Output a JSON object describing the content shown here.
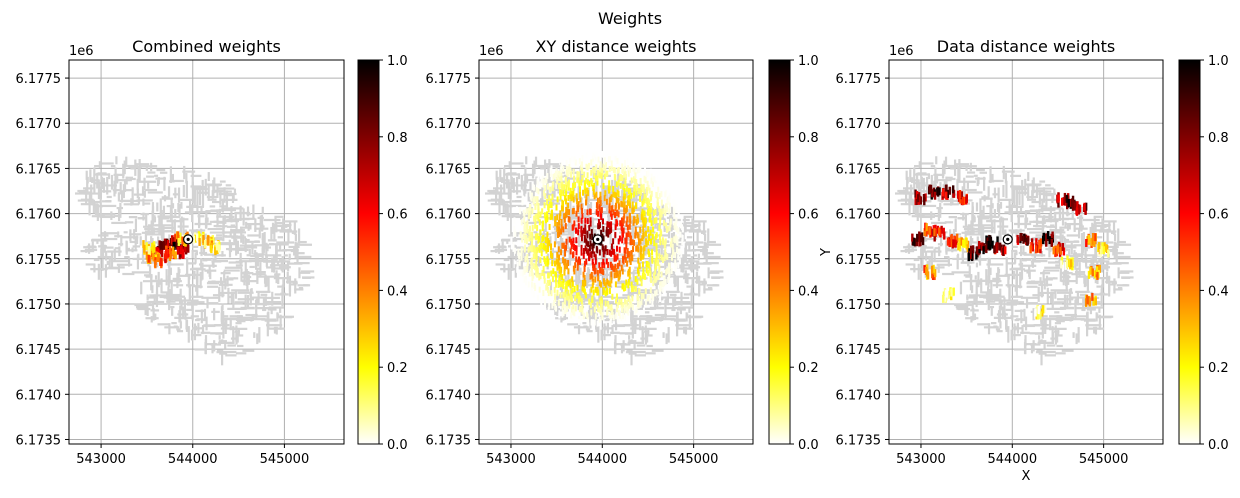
{
  "figure": {
    "title": "Weights",
    "colormap": [
      "#ffffff",
      "#ffff00",
      "#ff8000",
      "#ff0000",
      "#800000",
      "#000000"
    ],
    "grid_color": "#b0b0b0",
    "footprint_color": "#d3d3d3",
    "marker": {
      "x": 543950,
      "y": 6175715
    }
  },
  "chart_data": [
    {
      "type": "heatmap",
      "title": "Combined weights",
      "xlabel": "",
      "ylabel": "",
      "x_ticks": [
        543000,
        544000,
        545000
      ],
      "x_tick_labels": [
        "543000",
        "544000",
        "545000"
      ],
      "y_ticks": [
        6173500,
        6174000,
        6174500,
        6175000,
        6175500,
        6176000,
        6176500,
        6177000,
        6177500
      ],
      "y_tick_labels": [
        "6.1735",
        "6.1740",
        "6.1745",
        "6.1750",
        "6.1755",
        "6.1760",
        "6.1765",
        "6.1770",
        "6.1775"
      ],
      "y_offset_label": "1e6",
      "xlim": [
        542650,
        545650
      ],
      "ylim": [
        6173450,
        6177700
      ],
      "grid": true,
      "colorbar": {
        "range": [
          0,
          1
        ],
        "ticks": [
          "0.0",
          "0.2",
          "0.4",
          "0.6",
          "0.8",
          "1.0"
        ]
      },
      "weighted_points": [
        {
          "x": 543620,
          "y": 6175600,
          "w": 0.7
        },
        {
          "x": 543700,
          "y": 6175650,
          "w": 0.85
        },
        {
          "x": 543780,
          "y": 6175700,
          "w": 0.6
        },
        {
          "x": 543850,
          "y": 6175640,
          "w": 0.9
        },
        {
          "x": 543900,
          "y": 6175580,
          "w": 0.75
        },
        {
          "x": 543560,
          "y": 6175520,
          "w": 0.35
        },
        {
          "x": 543650,
          "y": 6175480,
          "w": 0.5
        },
        {
          "x": 543760,
          "y": 6175560,
          "w": 0.45
        },
        {
          "x": 543880,
          "y": 6175720,
          "w": 0.3
        },
        {
          "x": 544060,
          "y": 6175720,
          "w": 0.2
        },
        {
          "x": 544160,
          "y": 6175680,
          "w": 0.25
        },
        {
          "x": 544240,
          "y": 6175620,
          "w": 0.15
        },
        {
          "x": 543520,
          "y": 6175620,
          "w": 0.2
        }
      ]
    },
    {
      "type": "heatmap",
      "title": "XY distance weights",
      "xlabel": "",
      "ylabel": "Y",
      "x_ticks": [
        543000,
        544000,
        545000
      ],
      "x_tick_labels": [
        "543000",
        "544000",
        "545000"
      ],
      "y_ticks": [
        6173500,
        6174000,
        6174500,
        6175000,
        6175500,
        6176000,
        6176500,
        6177000,
        6177500
      ],
      "y_tick_labels": [
        "6.1735",
        "6.1740",
        "6.1745",
        "6.1750",
        "6.1755",
        "6.1760",
        "6.1765",
        "6.1770",
        "6.1775"
      ],
      "y_offset_label": "1e6",
      "xlim": [
        542650,
        545650
      ],
      "ylim": [
        6173450,
        6177700
      ],
      "grid": true,
      "colorbar": {
        "range": [
          0,
          1
        ],
        "ticks": [
          "0.0",
          "0.2",
          "0.4",
          "0.6",
          "0.8",
          "1.0"
        ]
      },
      "radial_weights": {
        "center_x": 543950,
        "center_y": 6175715,
        "radius": 950
      }
    },
    {
      "type": "heatmap",
      "title": "Data distance weights",
      "xlabel": "X",
      "ylabel": "",
      "x_ticks": [
        543000,
        544000,
        545000
      ],
      "x_tick_labels": [
        "543000",
        "544000",
        "545000"
      ],
      "y_ticks": [
        6173500,
        6174000,
        6174500,
        6175000,
        6175500,
        6176000,
        6176500,
        6177000,
        6177500
      ],
      "y_tick_labels": [
        "6.1735",
        "6.1740",
        "6.1745",
        "6.1750",
        "6.1755",
        "6.1760",
        "6.1765",
        "6.1770",
        "6.1775"
      ],
      "y_offset_label": "1e6",
      "xlim": [
        542650,
        545650
      ],
      "ylim": [
        6173450,
        6177700
      ],
      "grid": true,
      "colorbar": {
        "range": [
          0,
          1
        ],
        "ticks": [
          "0.0",
          "0.2",
          "0.4",
          "0.6",
          "0.8",
          "1.0"
        ]
      },
      "weighted_points": [
        {
          "x": 543000,
          "y": 6176180,
          "w": 0.7
        },
        {
          "x": 543150,
          "y": 6176240,
          "w": 0.85
        },
        {
          "x": 543300,
          "y": 6176240,
          "w": 0.75
        },
        {
          "x": 543450,
          "y": 6176180,
          "w": 0.6
        },
        {
          "x": 542960,
          "y": 6175720,
          "w": 0.8
        },
        {
          "x": 543100,
          "y": 6175820,
          "w": 0.5
        },
        {
          "x": 543200,
          "y": 6175780,
          "w": 0.6
        },
        {
          "x": 543350,
          "y": 6175700,
          "w": 0.55
        },
        {
          "x": 543450,
          "y": 6175650,
          "w": 0.3
        },
        {
          "x": 543580,
          "y": 6175560,
          "w": 0.9
        },
        {
          "x": 543680,
          "y": 6175620,
          "w": 0.85
        },
        {
          "x": 543780,
          "y": 6175680,
          "w": 0.95
        },
        {
          "x": 543860,
          "y": 6175600,
          "w": 0.7
        },
        {
          "x": 544120,
          "y": 6175720,
          "w": 0.8
        },
        {
          "x": 544250,
          "y": 6175640,
          "w": 0.6
        },
        {
          "x": 544380,
          "y": 6175720,
          "w": 0.9
        },
        {
          "x": 544500,
          "y": 6175600,
          "w": 0.55
        },
        {
          "x": 544550,
          "y": 6176150,
          "w": 0.7
        },
        {
          "x": 544650,
          "y": 6176120,
          "w": 0.85
        },
        {
          "x": 544750,
          "y": 6176060,
          "w": 0.75
        },
        {
          "x": 544850,
          "y": 6175700,
          "w": 0.45
        },
        {
          "x": 544900,
          "y": 6175350,
          "w": 0.3
        },
        {
          "x": 545000,
          "y": 6175600,
          "w": 0.2
        },
        {
          "x": 543100,
          "y": 6175350,
          "w": 0.4
        },
        {
          "x": 543300,
          "y": 6175100,
          "w": 0.1
        },
        {
          "x": 544300,
          "y": 6174900,
          "w": 0.12
        },
        {
          "x": 544850,
          "y": 6175050,
          "w": 0.35
        },
        {
          "x": 544600,
          "y": 6175450,
          "w": 0.15
        }
      ]
    }
  ]
}
